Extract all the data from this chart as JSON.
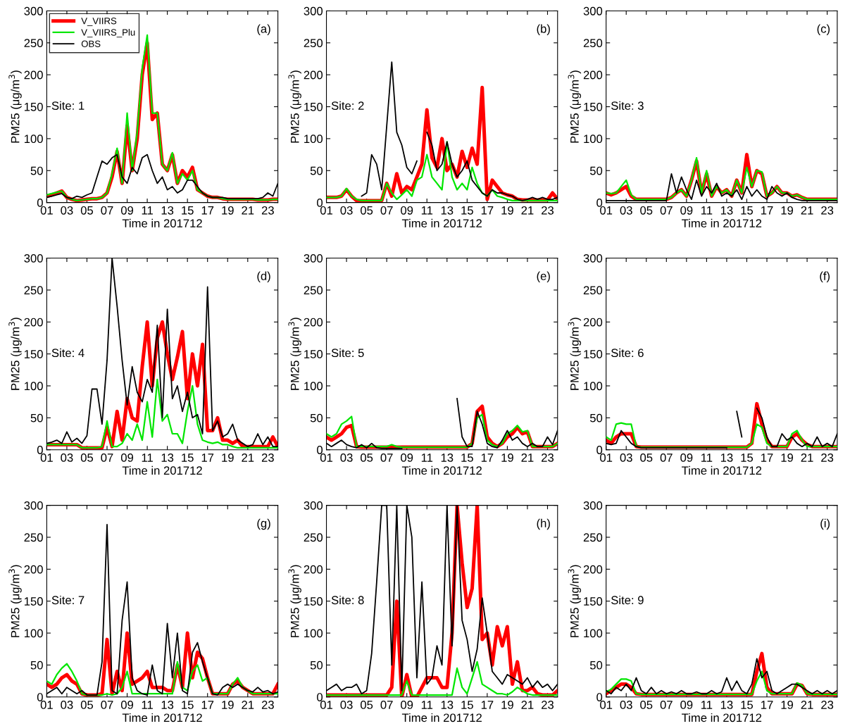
{
  "chart_data": [
    {
      "type": "line",
      "xlabel": "Time in 201712",
      "ylabel": "PM25 (μg/m$^{3}$)",
      "annotations": [
        "(a)",
        "Site: 1"
      ],
      "xlim": [
        1,
        24
      ],
      "ylim": [
        0,
        300
      ],
      "yticks": [
        0,
        50,
        100,
        150,
        200,
        250,
        300
      ],
      "xticks": [
        {
          "value": 1,
          "label": "01"
        },
        {
          "value": 3,
          "label": "03"
        },
        {
          "value": 5,
          "label": "05"
        },
        {
          "value": 7,
          "label": "07"
        },
        {
          "value": 9,
          "label": "09"
        },
        {
          "value": 11,
          "label": "11"
        },
        {
          "value": 13,
          "label": "13"
        },
        {
          "value": 15,
          "label": "15"
        },
        {
          "value": 17,
          "label": "17"
        },
        {
          "value": 19,
          "label": "19"
        },
        {
          "value": 21,
          "label": "21"
        },
        {
          "value": 23,
          "label": "23"
        }
      ],
      "legend": "top left",
      "grid": false,
      "x": [
        1,
        1.5,
        2,
        2.5,
        3,
        3.5,
        4,
        4.5,
        5,
        5.5,
        6,
        6.5,
        7,
        7.5,
        8,
        8.5,
        9,
        9.5,
        10,
        10.5,
        11,
        11.5,
        12,
        12.5,
        13,
        13.5,
        14,
        14.5,
        15,
        15.5,
        16,
        16.5,
        17,
        17.5,
        18,
        18.5,
        19,
        19.5,
        20,
        20.5,
        21,
        21.5,
        22,
        22.5,
        23,
        23.5,
        24
      ],
      "series": [
        {
          "name": "V_VIIRS",
          "color": "#ff0000",
          "values": [
            10,
            12,
            15,
            18,
            8,
            5,
            3,
            4,
            5,
            6,
            6,
            8,
            15,
            40,
            80,
            30,
            120,
            50,
            100,
            200,
            250,
            130,
            140,
            60,
            50,
            75,
            30,
            50,
            40,
            55,
            20,
            15,
            10,
            8,
            8,
            6,
            5,
            5,
            5,
            5,
            5,
            5,
            4,
            4,
            4,
            5,
            5
          ]
        },
        {
          "name": "V_VIIRS_Plu",
          "color": "#00e600",
          "values": [
            12,
            14,
            16,
            18,
            8,
            5,
            3,
            4,
            5,
            6,
            6,
            8,
            15,
            45,
            85,
            30,
            140,
            50,
            110,
            210,
            262,
            140,
            140,
            60,
            50,
            78,
            30,
            45,
            35,
            50,
            20,
            15,
            10,
            8,
            8,
            6,
            5,
            5,
            5,
            5,
            5,
            5,
            4,
            4,
            4,
            5,
            5
          ]
        },
        {
          "name": "OBS",
          "color": "#000000",
          "values": [
            8,
            10,
            12,
            14,
            8,
            6,
            10,
            8,
            12,
            15,
            40,
            65,
            60,
            70,
            75,
            40,
            30,
            55,
            45,
            70,
            75,
            50,
            30,
            40,
            20,
            25,
            15,
            20,
            35,
            35,
            25,
            15,
            10,
            8,
            8,
            8,
            6,
            6,
            6,
            6,
            6,
            6,
            6,
            8,
            15,
            10,
            30
          ]
        }
      ]
    },
    {
      "type": "line",
      "xlabel": "Time in 201712",
      "ylabel": "PM25 (μg/m$^{3}$)",
      "annotations": [
        "(b)",
        "Site: 2"
      ],
      "xlim": [
        1,
        24
      ],
      "ylim": [
        0,
        300
      ],
      "yticks": [
        0,
        50,
        100,
        150,
        200,
        250,
        300
      ],
      "xticks": [
        {
          "value": 1,
          "label": "01"
        },
        {
          "value": 3,
          "label": "03"
        },
        {
          "value": 5,
          "label": "05"
        },
        {
          "value": 7,
          "label": "07"
        },
        {
          "value": 9,
          "label": "09"
        },
        {
          "value": 11,
          "label": "11"
        },
        {
          "value": 13,
          "label": "13"
        },
        {
          "value": 15,
          "label": "15"
        },
        {
          "value": 17,
          "label": "17"
        },
        {
          "value": 19,
          "label": "19"
        },
        {
          "value": 21,
          "label": "21"
        },
        {
          "value": 23,
          "label": "23"
        }
      ],
      "grid": false,
      "x": [
        1,
        1.5,
        2,
        2.5,
        3,
        3.5,
        4,
        4.5,
        5,
        5.5,
        6,
        6.5,
        7,
        7.5,
        8,
        8.5,
        9,
        9.5,
        10,
        10.5,
        11,
        11.5,
        12,
        12.5,
        13,
        13.5,
        14,
        14.5,
        15,
        15.5,
        16,
        16.5,
        17,
        17.5,
        18,
        18.5,
        19,
        19.5,
        20,
        20.5,
        21,
        21.5,
        22,
        22.5,
        23,
        23.5,
        24
      ],
      "series": [
        {
          "color": "#ff0000",
          "values": [
            8,
            8,
            8,
            10,
            20,
            10,
            3,
            3,
            3,
            3,
            3,
            3,
            30,
            10,
            45,
            15,
            25,
            20,
            40,
            60,
            145,
            70,
            55,
            100,
            50,
            60,
            40,
            80,
            55,
            85,
            60,
            180,
            5,
            35,
            25,
            15,
            12,
            10,
            5,
            4,
            4,
            4,
            4,
            4,
            4,
            15,
            5
          ]
        },
        {
          "color": "#00e600",
          "values": [
            8,
            8,
            8,
            10,
            22,
            10,
            5,
            3,
            3,
            3,
            3,
            3,
            30,
            15,
            5,
            12,
            20,
            10,
            35,
            40,
            75,
            40,
            30,
            20,
            95,
            40,
            20,
            30,
            20,
            55,
            30,
            15,
            10,
            20,
            10,
            8,
            5,
            3,
            3,
            3,
            3,
            3,
            3,
            3,
            3,
            3,
            3
          ]
        },
        {
          "color": "#000000",
          "values": [
            null,
            null,
            null,
            null,
            null,
            null,
            null,
            10,
            15,
            75,
            60,
            20,
            120,
            220,
            110,
            90,
            55,
            45,
            65,
            null,
            110,
            90,
            50,
            60,
            95,
            60,
            40,
            50,
            65,
            35,
            25,
            15,
            10,
            20,
            15,
            15,
            12,
            10,
            5,
            3,
            5,
            8,
            5,
            8,
            5,
            5,
            8
          ]
        }
      ]
    },
    {
      "type": "line",
      "xlabel": "Time in 201712",
      "ylabel": "PM25 (μg/m$^{3}$)",
      "annotations": [
        "(c)",
        "Site: 3"
      ],
      "xlim": [
        1,
        24
      ],
      "ylim": [
        0,
        300
      ],
      "yticks": [
        0,
        50,
        100,
        150,
        200,
        250,
        300
      ],
      "xticks": [
        {
          "value": 1,
          "label": "01"
        },
        {
          "value": 3,
          "label": "03"
        },
        {
          "value": 5,
          "label": "05"
        },
        {
          "value": 7,
          "label": "07"
        },
        {
          "value": 9,
          "label": "09"
        },
        {
          "value": 11,
          "label": "11"
        },
        {
          "value": 13,
          "label": "13"
        },
        {
          "value": 15,
          "label": "15"
        },
        {
          "value": 17,
          "label": "17"
        },
        {
          "value": 19,
          "label": "19"
        },
        {
          "value": 21,
          "label": "21"
        },
        {
          "value": 23,
          "label": "23"
        }
      ],
      "grid": false,
      "x": [
        1,
        1.5,
        2,
        2.5,
        3,
        3.5,
        4,
        4.5,
        5,
        5.5,
        6,
        6.5,
        7,
        7.5,
        8,
        8.5,
        9,
        9.5,
        10,
        10.5,
        11,
        11.5,
        12,
        12.5,
        13,
        13.5,
        14,
        14.5,
        15,
        15.5,
        16,
        16.5,
        17,
        17.5,
        18,
        18.5,
        19,
        19.5,
        20,
        20.5,
        21,
        21.5,
        22,
        22.5,
        23,
        23.5,
        24
      ],
      "series": [
        {
          "color": "#ff0000",
          "values": [
            15,
            12,
            15,
            20,
            25,
            10,
            5,
            5,
            5,
            5,
            5,
            5,
            5,
            8,
            15,
            20,
            10,
            35,
            65,
            15,
            45,
            10,
            25,
            15,
            20,
            10,
            35,
            15,
            75,
            25,
            50,
            45,
            10,
            15,
            25,
            15,
            15,
            10,
            12,
            8,
            5,
            5,
            5,
            5,
            5,
            5,
            5
          ]
        },
        {
          "color": "#00e600",
          "values": [
            15,
            14,
            15,
            25,
            35,
            12,
            5,
            5,
            5,
            5,
            5,
            5,
            5,
            8,
            15,
            20,
            10,
            35,
            70,
            15,
            50,
            10,
            25,
            15,
            20,
            10,
            35,
            15,
            55,
            25,
            50,
            48,
            10,
            15,
            25,
            15,
            15,
            10,
            12,
            8,
            5,
            5,
            5,
            5,
            5,
            5,
            5
          ]
        },
        {
          "color": "#000000",
          "values": [
            3,
            3,
            3,
            3,
            3,
            3,
            3,
            3,
            3,
            3,
            3,
            3,
            3,
            45,
            15,
            40,
            20,
            5,
            35,
            10,
            25,
            15,
            30,
            10,
            15,
            10,
            20,
            5,
            25,
            10,
            20,
            10,
            5,
            25,
            15,
            10,
            15,
            8,
            5,
            3,
            3,
            3,
            3,
            3,
            3,
            3,
            3
          ]
        }
      ]
    },
    {
      "type": "line",
      "xlabel": "Time in 201712",
      "ylabel": "PM25 (μg/m$^{3}$)",
      "annotations": [
        "(d)",
        "Site: 4"
      ],
      "xlim": [
        1,
        24
      ],
      "ylim": [
        0,
        300
      ],
      "yticks": [
        0,
        50,
        100,
        150,
        200,
        250,
        300
      ],
      "xticks": [
        {
          "value": 1,
          "label": "01"
        },
        {
          "value": 3,
          "label": "03"
        },
        {
          "value": 5,
          "label": "05"
        },
        {
          "value": 7,
          "label": "07"
        },
        {
          "value": 9,
          "label": "09"
        },
        {
          "value": 11,
          "label": "11"
        },
        {
          "value": 13,
          "label": "13"
        },
        {
          "value": 15,
          "label": "15"
        },
        {
          "value": 17,
          "label": "17"
        },
        {
          "value": 19,
          "label": "19"
        },
        {
          "value": 21,
          "label": "21"
        },
        {
          "value": 23,
          "label": "23"
        }
      ],
      "grid": false,
      "x": [
        1,
        1.5,
        2,
        2.5,
        3,
        3.5,
        4,
        4.5,
        5,
        5.5,
        6,
        6.5,
        7,
        7.5,
        8,
        8.5,
        9,
        9.5,
        10,
        10.5,
        11,
        11.5,
        12,
        12.5,
        13,
        13.5,
        14,
        14.5,
        15,
        15.5,
        16,
        16.5,
        17,
        17.5,
        18,
        18.5,
        19,
        19.5,
        20,
        20.5,
        21,
        21.5,
        22,
        22.5,
        23,
        23.5,
        24
      ],
      "series": [
        {
          "color": "#ff0000",
          "values": [
            8,
            8,
            8,
            8,
            8,
            8,
            8,
            3,
            3,
            3,
            3,
            3,
            35,
            5,
            60,
            15,
            80,
            50,
            45,
            130,
            200,
            100,
            175,
            200,
            150,
            110,
            145,
            185,
            80,
            150,
            100,
            165,
            30,
            30,
            50,
            15,
            15,
            10,
            15,
            5,
            5,
            5,
            5,
            5,
            5,
            20,
            5
          ]
        },
        {
          "color": "#00e600",
          "values": [
            8,
            8,
            8,
            8,
            8,
            8,
            8,
            3,
            3,
            3,
            3,
            5,
            45,
            5,
            5,
            10,
            25,
            15,
            40,
            15,
            75,
            20,
            110,
            45,
            55,
            25,
            25,
            10,
            60,
            100,
            40,
            15,
            12,
            10,
            12,
            8,
            8,
            5,
            3,
            3,
            3,
            3,
            3,
            3,
            3,
            3,
            3
          ]
        },
        {
          "color": "#000000",
          "values": [
            10,
            12,
            15,
            10,
            28,
            12,
            18,
            10,
            22,
            95,
            95,
            40,
            140,
            300,
            225,
            140,
            70,
            130,
            90,
            75,
            110,
            90,
            195,
            50,
            220,
            80,
            100,
            60,
            90,
            50,
            55,
            25,
            255,
            30,
            45,
            20,
            25,
            40,
            15,
            10,
            5,
            8,
            25,
            8,
            20,
            5,
            5
          ]
        }
      ]
    },
    {
      "type": "line",
      "xlabel": "Time in 201712",
      "ylabel": "PM25 (μg/m$^{3}$)",
      "annotations": [
        "(e)",
        "Site: 5"
      ],
      "xlim": [
        1,
        24
      ],
      "ylim": [
        0,
        300
      ],
      "yticks": [
        0,
        50,
        100,
        150,
        200,
        250,
        300
      ],
      "xticks": [
        {
          "value": 1,
          "label": "01"
        },
        {
          "value": 3,
          "label": "03"
        },
        {
          "value": 5,
          "label": "05"
        },
        {
          "value": 7,
          "label": "07"
        },
        {
          "value": 9,
          "label": "09"
        },
        {
          "value": 11,
          "label": "11"
        },
        {
          "value": 13,
          "label": "13"
        },
        {
          "value": 15,
          "label": "15"
        },
        {
          "value": 17,
          "label": "17"
        },
        {
          "value": 19,
          "label": "19"
        },
        {
          "value": 21,
          "label": "21"
        },
        {
          "value": 23,
          "label": "23"
        }
      ],
      "grid": false,
      "x": [
        1,
        1.5,
        2,
        2.5,
        3,
        3.5,
        4,
        4.5,
        5,
        5.5,
        6,
        6.5,
        7,
        7.5,
        8,
        8.5,
        9,
        9.5,
        10,
        10.5,
        11,
        11.5,
        12,
        12.5,
        13,
        13.5,
        14,
        14.5,
        15,
        15.5,
        16,
        16.5,
        17,
        17.5,
        18,
        18.5,
        19,
        19.5,
        20,
        20.5,
        21,
        21.5,
        22,
        22.5,
        23,
        23.5,
        24
      ],
      "series": [
        {
          "color": "#ff0000",
          "values": [
            20,
            15,
            20,
            25,
            35,
            38,
            5,
            4,
            4,
            4,
            4,
            4,
            4,
            4,
            4,
            4,
            4,
            4,
            4,
            4,
            4,
            4,
            4,
            4,
            4,
            4,
            4,
            4,
            4,
            10,
            60,
            68,
            20,
            10,
            5,
            10,
            20,
            25,
            35,
            25,
            28,
            5,
            5,
            5,
            5,
            5,
            10
          ]
        },
        {
          "color": "#00e600",
          "values": [
            25,
            20,
            25,
            40,
            45,
            52,
            5,
            5,
            5,
            5,
            5,
            5,
            5,
            8,
            5,
            4,
            4,
            4,
            4,
            4,
            4,
            4,
            4,
            4,
            4,
            4,
            4,
            4,
            4,
            10,
            50,
            55,
            15,
            8,
            5,
            10,
            25,
            30,
            38,
            28,
            30,
            5,
            5,
            5,
            5,
            5,
            10
          ]
        },
        {
          "color": "#000000",
          "values": [
            10,
            5,
            10,
            15,
            8,
            5,
            3,
            8,
            3,
            10,
            3,
            2,
            2,
            2,
            2,
            2,
            null,
            null,
            null,
            null,
            null,
            null,
            null,
            null,
            null,
            null,
            80,
            20,
            5,
            5,
            60,
            40,
            10,
            5,
            3,
            15,
            30,
            15,
            20,
            10,
            5,
            10,
            5,
            5,
            20,
            8,
            30
          ]
        }
      ]
    },
    {
      "type": "line",
      "xlabel": "Time in 201712",
      "ylabel": "PM25 (μg/m$^{3}$)",
      "annotations": [
        "(f)",
        "Site: 6"
      ],
      "xlim": [
        1,
        24
      ],
      "ylim": [
        0,
        300
      ],
      "yticks": [
        0,
        50,
        100,
        150,
        200,
        250,
        300
      ],
      "xticks": [
        {
          "value": 1,
          "label": "01"
        },
        {
          "value": 3,
          "label": "03"
        },
        {
          "value": 5,
          "label": "05"
        },
        {
          "value": 7,
          "label": "07"
        },
        {
          "value": 9,
          "label": "09"
        },
        {
          "value": 11,
          "label": "11"
        },
        {
          "value": 13,
          "label": "13"
        },
        {
          "value": 15,
          "label": "15"
        },
        {
          "value": 17,
          "label": "17"
        },
        {
          "value": 19,
          "label": "19"
        },
        {
          "value": 21,
          "label": "21"
        },
        {
          "value": 23,
          "label": "23"
        }
      ],
      "grid": false,
      "x": [
        1,
        1.5,
        2,
        2.5,
        3,
        3.5,
        4,
        4.5,
        5,
        5.5,
        6,
        6.5,
        7,
        7.5,
        8,
        8.5,
        9,
        9.5,
        10,
        10.5,
        11,
        11.5,
        12,
        12.5,
        13,
        13.5,
        14,
        14.5,
        15,
        15.5,
        16,
        16.5,
        17,
        17.5,
        18,
        18.5,
        19,
        19.5,
        20,
        20.5,
        21,
        21.5,
        22,
        22.5,
        23,
        23.5,
        24
      ],
      "series": [
        {
          "color": "#ff0000",
          "values": [
            15,
            10,
            20,
            25,
            25,
            25,
            5,
            4,
            4,
            4,
            4,
            4,
            4,
            4,
            4,
            4,
            4,
            4,
            4,
            4,
            4,
            4,
            4,
            4,
            4,
            4,
            4,
            4,
            4,
            10,
            72,
            40,
            15,
            5,
            5,
            5,
            5,
            20,
            25,
            15,
            8,
            5,
            5,
            5,
            5,
            5,
            5
          ]
        },
        {
          "color": "#00e600",
          "values": [
            20,
            15,
            40,
            42,
            40,
            40,
            5,
            4,
            4,
            4,
            4,
            4,
            4,
            4,
            4,
            4,
            4,
            4,
            4,
            4,
            4,
            4,
            4,
            4,
            4,
            4,
            4,
            4,
            4,
            10,
            40,
            35,
            10,
            5,
            5,
            5,
            5,
            25,
            30,
            15,
            5,
            5,
            5,
            5,
            5,
            5,
            5
          ]
        },
        {
          "color": "#000000",
          "values": [
            10,
            8,
            10,
            30,
            20,
            10,
            5,
            3,
            3,
            3,
            3,
            3,
            3,
            3,
            3,
            3,
            3,
            3,
            3,
            3,
            3,
            3,
            3,
            3,
            3,
            null,
            60,
            20,
            null,
            null,
            65,
            50,
            20,
            5,
            5,
            25,
            15,
            20,
            10,
            5,
            10,
            5,
            20,
            5,
            10,
            5,
            25
          ]
        }
      ]
    },
    {
      "type": "line",
      "xlabel": "Time in 201712",
      "ylabel": "PM25 (μg/m$^{3}$)",
      "annotations": [
        "(g)",
        "Site: 7"
      ],
      "xlim": [
        1,
        24
      ],
      "ylim": [
        0,
        300
      ],
      "yticks": [
        0,
        50,
        100,
        150,
        200,
        250,
        300
      ],
      "xticks": [
        {
          "value": 1,
          "label": "01"
        },
        {
          "value": 3,
          "label": "03"
        },
        {
          "value": 5,
          "label": "05"
        },
        {
          "value": 7,
          "label": "07"
        },
        {
          "value": 9,
          "label": "09"
        },
        {
          "value": 11,
          "label": "11"
        },
        {
          "value": 13,
          "label": "13"
        },
        {
          "value": 15,
          "label": "15"
        },
        {
          "value": 17,
          "label": "17"
        },
        {
          "value": 19,
          "label": "19"
        },
        {
          "value": 21,
          "label": "21"
        },
        {
          "value": 23,
          "label": "23"
        }
      ],
      "grid": false,
      "x": [
        1,
        1.5,
        2,
        2.5,
        3,
        3.5,
        4,
        4.5,
        5,
        5.5,
        6,
        6.5,
        7,
        7.5,
        8,
        8.5,
        9,
        9.5,
        10,
        10.5,
        11,
        11.5,
        12,
        12.5,
        13,
        13.5,
        14,
        14.5,
        15,
        15.5,
        16,
        16.5,
        17,
        17.5,
        18,
        18.5,
        19,
        19.5,
        20,
        20.5,
        21,
        21.5,
        22,
        22.5,
        23,
        23.5,
        24
      ],
      "series": [
        {
          "color": "#ff0000",
          "values": [
            20,
            15,
            20,
            30,
            35,
            25,
            20,
            5,
            3,
            3,
            3,
            5,
            90,
            5,
            40,
            10,
            100,
            20,
            25,
            30,
            40,
            15,
            15,
            15,
            10,
            10,
            50,
            15,
            100,
            30,
            70,
            60,
            30,
            5,
            5,
            5,
            5,
            20,
            25,
            15,
            10,
            5,
            5,
            5,
            5,
            5,
            20
          ]
        },
        {
          "color": "#00e600",
          "values": [
            25,
            20,
            35,
            45,
            52,
            40,
            25,
            5,
            3,
            3,
            3,
            3,
            5,
            3,
            5,
            15,
            40,
            5,
            5,
            5,
            5,
            5,
            5,
            5,
            5,
            5,
            55,
            15,
            10,
            40,
            50,
            25,
            30,
            5,
            5,
            5,
            5,
            20,
            30,
            15,
            10,
            5,
            5,
            5,
            5,
            5,
            5
          ]
        },
        {
          "color": "#000000",
          "values": [
            5,
            10,
            15,
            5,
            15,
            10,
            5,
            10,
            3,
            3,
            3,
            55,
            270,
            10,
            5,
            120,
            180,
            30,
            10,
            5,
            3,
            50,
            10,
            5,
            115,
            30,
            100,
            10,
            5,
            70,
            85,
            55,
            30,
            5,
            3,
            15,
            20,
            15,
            20,
            15,
            10,
            8,
            15,
            8,
            10,
            5,
            8
          ]
        }
      ]
    },
    {
      "type": "line",
      "xlabel": "Time in 201712",
      "ylabel": "PM25 (μg/m$^{3}$)",
      "annotations": [
        "(h)",
        "Site: 8"
      ],
      "xlim": [
        1,
        24
      ],
      "ylim": [
        0,
        300
      ],
      "yticks": [
        0,
        50,
        100,
        150,
        200,
        250,
        300
      ],
      "xticks": [
        {
          "value": 1,
          "label": "01"
        },
        {
          "value": 3,
          "label": "03"
        },
        {
          "value": 5,
          "label": "05"
        },
        {
          "value": 7,
          "label": "07"
        },
        {
          "value": 9,
          "label": "09"
        },
        {
          "value": 11,
          "label": "11"
        },
        {
          "value": 13,
          "label": "13"
        },
        {
          "value": 15,
          "label": "15"
        },
        {
          "value": 17,
          "label": "17"
        },
        {
          "value": 19,
          "label": "19"
        },
        {
          "value": 21,
          "label": "21"
        },
        {
          "value": 23,
          "label": "23"
        }
      ],
      "grid": false,
      "x": [
        1,
        1.5,
        2,
        2.5,
        3,
        3.5,
        4,
        4.5,
        5,
        5.5,
        6,
        6.5,
        7,
        7.5,
        8,
        8.5,
        9,
        9.5,
        10,
        10.5,
        11,
        11.5,
        12,
        12.5,
        13,
        13.5,
        14,
        14.5,
        15,
        15.5,
        16,
        16.5,
        17,
        17.5,
        18,
        18.5,
        19,
        19.5,
        20,
        20.5,
        21,
        21.5,
        22,
        22.5,
        23,
        23.5,
        24
      ],
      "series": [
        {
          "color": "#ff0000",
          "values": [
            3,
            3,
            3,
            3,
            3,
            3,
            3,
            3,
            3,
            3,
            3,
            3,
            3,
            15,
            150,
            0,
            35,
            0,
            0,
            15,
            30,
            30,
            30,
            15,
            15,
            100,
            300,
            210,
            140,
            170,
            300,
            90,
            100,
            50,
            110,
            80,
            110,
            20,
            55,
            10,
            10,
            15,
            5,
            3,
            3,
            3,
            10
          ]
        },
        {
          "color": "#00e600",
          "values": [
            3,
            3,
            3,
            3,
            3,
            3,
            3,
            3,
            3,
            3,
            3,
            3,
            3,
            3,
            3,
            3,
            25,
            3,
            3,
            3,
            3,
            3,
            3,
            3,
            3,
            3,
            45,
            15,
            5,
            30,
            55,
            20,
            15,
            10,
            5,
            5,
            3,
            8,
            15,
            10,
            5,
            3,
            3,
            3,
            3,
            3,
            3
          ]
        },
        {
          "color": "#000000",
          "values": [
            10,
            15,
            20,
            10,
            15,
            15,
            20,
            5,
            10,
            68,
            180,
            300,
            300,
            50,
            300,
            10,
            300,
            250,
            30,
            180,
            20,
            30,
            80,
            50,
            300,
            80,
            300,
            120,
            90,
            40,
            75,
            155,
            100,
            40,
            30,
            20,
            35,
            30,
            25,
            20,
            30,
            15,
            25,
            15,
            20,
            10,
            20
          ]
        }
      ]
    },
    {
      "type": "line",
      "xlabel": "Time in 201712",
      "ylabel": "PM25 (μg/m$^{3}$)",
      "annotations": [
        "(i)",
        "Site: 9"
      ],
      "xlim": [
        1,
        24
      ],
      "ylim": [
        0,
        300
      ],
      "yticks": [
        0,
        50,
        100,
        150,
        200,
        250,
        300
      ],
      "xticks": [
        {
          "value": 1,
          "label": "01"
        },
        {
          "value": 3,
          "label": "03"
        },
        {
          "value": 5,
          "label": "05"
        },
        {
          "value": 7,
          "label": "07"
        },
        {
          "value": 9,
          "label": "09"
        },
        {
          "value": 11,
          "label": "11"
        },
        {
          "value": 13,
          "label": "13"
        },
        {
          "value": 15,
          "label": "15"
        },
        {
          "value": 17,
          "label": "17"
        },
        {
          "value": 19,
          "label": "19"
        },
        {
          "value": 21,
          "label": "21"
        },
        {
          "value": 23,
          "label": "23"
        }
      ],
      "grid": false,
      "x": [
        1,
        1.5,
        2,
        2.5,
        3,
        3.5,
        4,
        4.5,
        5,
        5.5,
        6,
        6.5,
        7,
        7.5,
        8,
        8.5,
        9,
        9.5,
        10,
        10.5,
        11,
        11.5,
        12,
        12.5,
        13,
        13.5,
        14,
        14.5,
        15,
        15.5,
        16,
        16.5,
        17,
        17.5,
        18,
        18.5,
        19,
        19.5,
        20,
        20.5,
        21,
        21.5,
        22,
        22.5,
        23,
        23.5,
        24
      ],
      "series": [
        {
          "color": "#ff0000",
          "values": [
            5,
            10,
            15,
            20,
            20,
            15,
            5,
            4,
            4,
            4,
            4,
            4,
            4,
            4,
            4,
            4,
            4,
            4,
            4,
            4,
            4,
            4,
            4,
            4,
            4,
            4,
            4,
            4,
            4,
            4,
            40,
            68,
            15,
            5,
            5,
            5,
            5,
            5,
            20,
            18,
            5,
            4,
            4,
            4,
            4,
            4,
            4
          ]
        },
        {
          "color": "#00e600",
          "values": [
            8,
            12,
            20,
            28,
            28,
            25,
            5,
            4,
            4,
            4,
            4,
            4,
            4,
            4,
            4,
            4,
            4,
            4,
            4,
            4,
            4,
            4,
            4,
            4,
            4,
            4,
            4,
            4,
            4,
            4,
            25,
            40,
            10,
            5,
            5,
            5,
            5,
            5,
            22,
            18,
            5,
            4,
            4,
            4,
            4,
            4,
            4
          ]
        },
        {
          "color": "#000000",
          "values": [
            10,
            5,
            15,
            10,
            20,
            10,
            30,
            10,
            5,
            15,
            5,
            10,
            5,
            8,
            5,
            10,
            5,
            5,
            8,
            5,
            5,
            10,
            5,
            8,
            30,
            10,
            25,
            10,
            5,
            20,
            60,
            30,
            40,
            10,
            5,
            10,
            15,
            20,
            20,
            15,
            10,
            5,
            10,
            5,
            10,
            5,
            10
          ]
        }
      ]
    }
  ]
}
